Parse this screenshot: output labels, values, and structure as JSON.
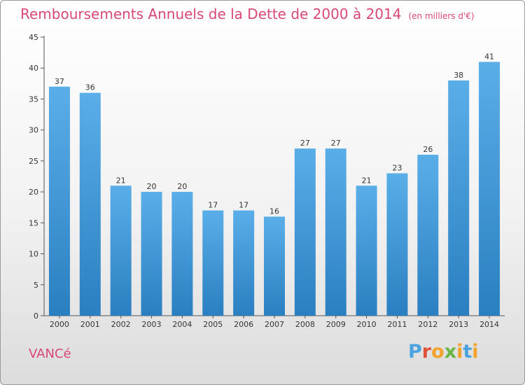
{
  "header": {
    "title": "Remboursements Annuels de la Dette de 2000 à 2014",
    "unit": "(en milliers d'€)"
  },
  "footer": {
    "commune": "VANCé",
    "logo": [
      "P",
      "r",
      "o",
      "x",
      "i",
      "t",
      "i"
    ]
  },
  "colors": {
    "title": "#d9477a",
    "bar_top": "#5aaee8",
    "bar_bottom": "#2a7fc1"
  },
  "chart_data": {
    "type": "bar",
    "categories": [
      "2000",
      "2001",
      "2002",
      "2003",
      "2004",
      "2005",
      "2006",
      "2007",
      "2008",
      "2009",
      "2010",
      "2011",
      "2012",
      "2013",
      "2014"
    ],
    "values": [
      37,
      36,
      21,
      20,
      20,
      17,
      17,
      16,
      27,
      27,
      21,
      23,
      26,
      38,
      41
    ],
    "title": "Remboursements Annuels de la Dette de 2000 à 2014",
    "xlabel": "",
    "ylabel": "",
    "ylim": [
      0,
      45
    ],
    "yticks": [
      0,
      5,
      10,
      15,
      20,
      25,
      30,
      35,
      40,
      45
    ],
    "grid": false,
    "data_labels": true
  }
}
